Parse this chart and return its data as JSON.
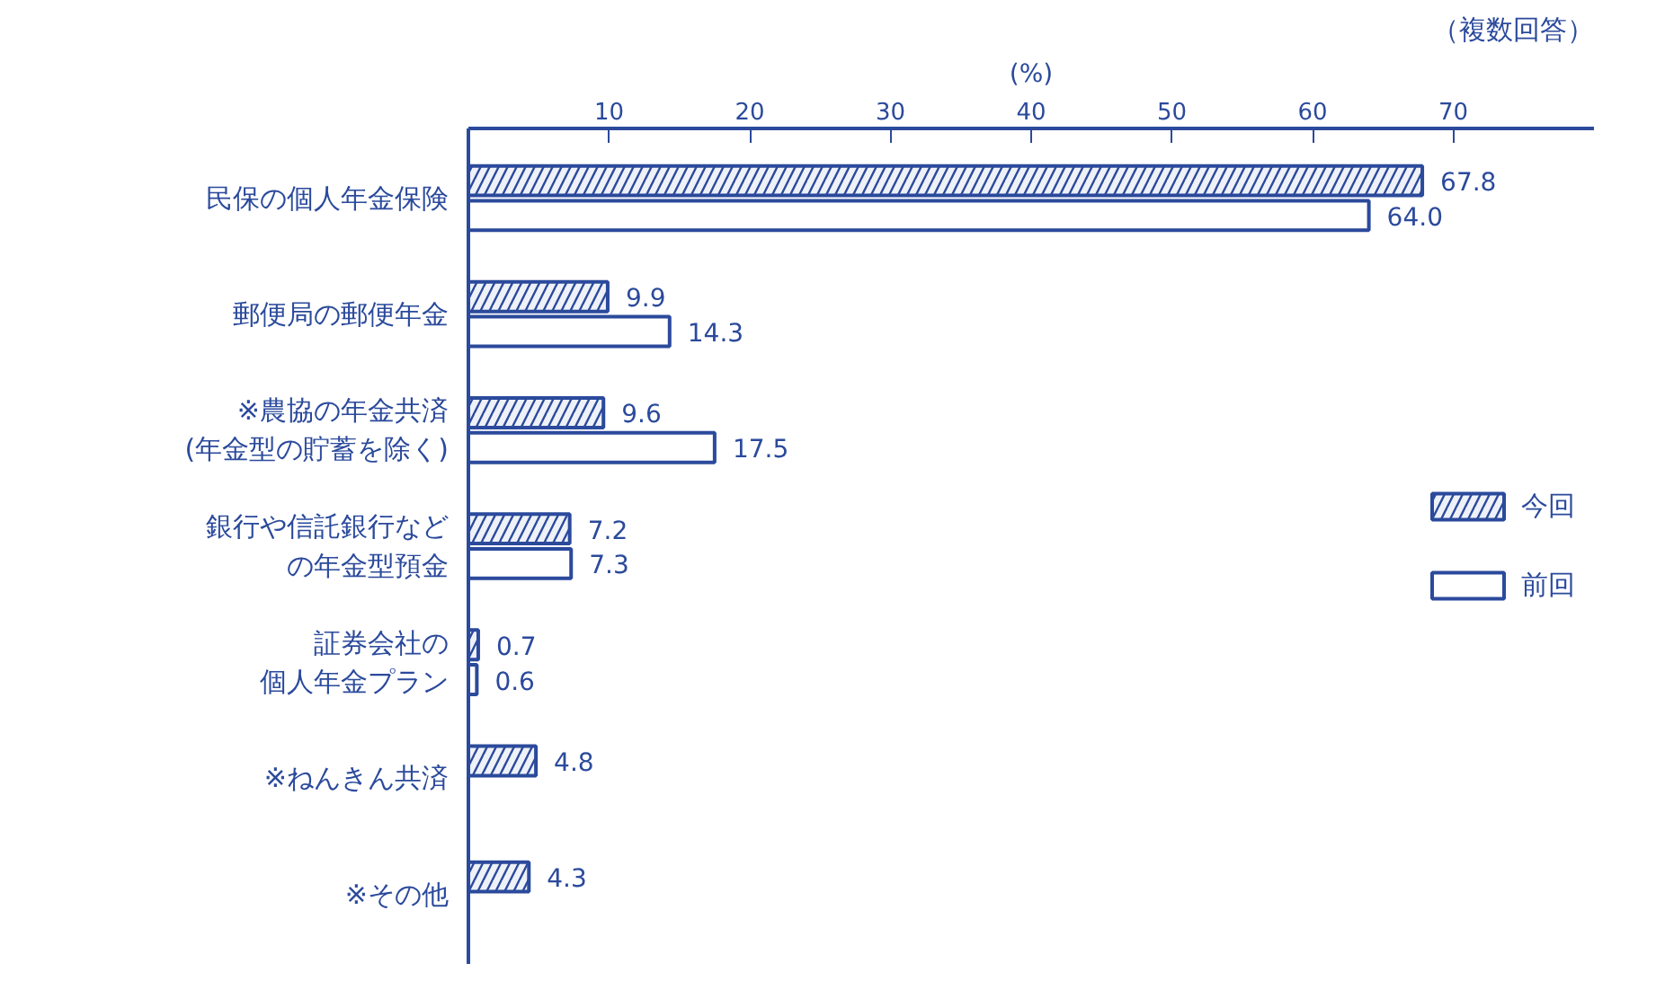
{
  "chart_data": {
    "type": "bar",
    "orientation": "horizontal",
    "xlabel": "(%)",
    "annotations": [
      "（複数回答）"
    ],
    "categories": [
      "民保の個人年金保険",
      "郵便局の郵便年金",
      "※農協の年金共済(年金型の貯蓄を除く)",
      "銀行や信託銀行などの年金型預金",
      "証券会社の個人年金プラン",
      "※ねんきん共済",
      "※その他"
    ],
    "series": [
      {
        "name": "今回",
        "color": "#2b4a9c",
        "values": [
          67.8,
          9.9,
          9.6,
          7.2,
          0.7,
          4.8,
          4.3
        ],
        "value_labels": [
          "67.8",
          "9.9",
          "9.6",
          "7.2",
          "0.7",
          "4.8",
          "4.3"
        ]
      },
      {
        "name": "前回",
        "color": "#2b4a9c",
        "values": [
          64.0,
          14.3,
          17.5,
          7.3,
          0.6,
          null,
          null
        ],
        "value_labels": [
          "64.0",
          "14.3",
          "17.5",
          "7.3",
          "0.6",
          null,
          null
        ]
      }
    ],
    "xlim": [
      0,
      80
    ],
    "xticks": [
      10,
      20,
      30,
      40,
      50,
      60,
      70
    ],
    "grid": false,
    "legend": "right"
  }
}
